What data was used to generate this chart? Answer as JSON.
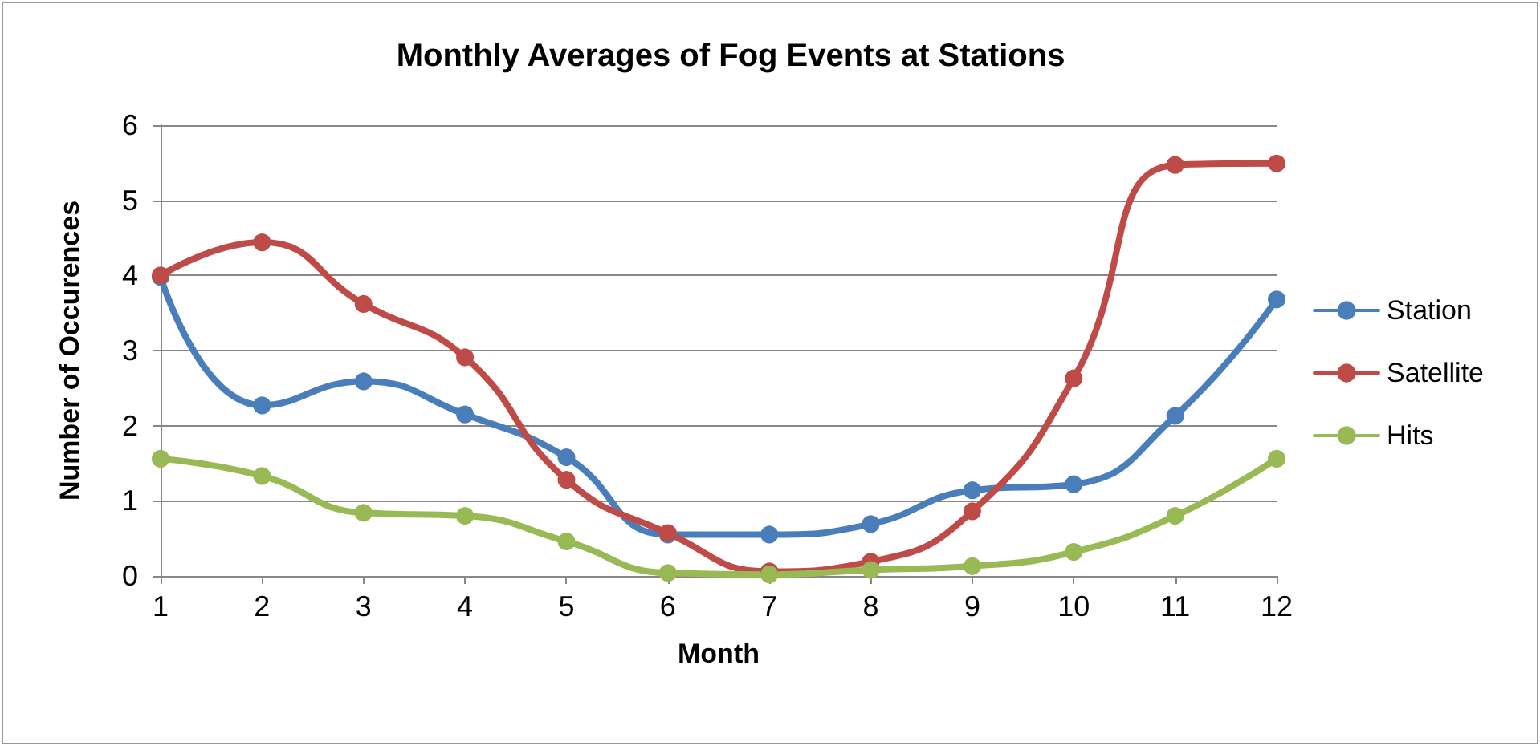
{
  "chart_data": {
    "type": "line",
    "title": "Monthly Averages of Fog Events at Stations",
    "xlabel": "Month",
    "ylabel": "Number of Occurences",
    "x": [
      1,
      2,
      3,
      4,
      5,
      6,
      7,
      8,
      9,
      10,
      11,
      12
    ],
    "series": [
      {
        "name": "Station",
        "color": "#4a7ebb",
        "values": [
          3.98,
          2.27,
          2.59,
          2.15,
          1.58,
          0.55,
          0.55,
          0.69,
          1.14,
          1.22,
          2.13,
          3.68
        ]
      },
      {
        "name": "Satellite",
        "color": "#be4b48",
        "values": [
          4.0,
          4.44,
          3.62,
          2.91,
          1.28,
          0.57,
          0.06,
          0.19,
          0.86,
          2.63,
          5.47,
          5.49
        ]
      },
      {
        "name": "Hits",
        "color": "#98b954",
        "values": [
          1.56,
          1.33,
          0.84,
          0.8,
          0.46,
          0.04,
          0.02,
          0.08,
          0.13,
          0.32,
          0.8,
          1.56
        ]
      }
    ],
    "xlim": [
      1,
      12
    ],
    "xticks": [
      1,
      2,
      3,
      4,
      5,
      6,
      7,
      8,
      9,
      10,
      11,
      12
    ],
    "ylim": [
      0,
      6
    ],
    "yticks": [
      0,
      1,
      2,
      3,
      4,
      5,
      6
    ],
    "grid": "y",
    "legend": "right",
    "marker": "circle",
    "line_style": "solid"
  }
}
